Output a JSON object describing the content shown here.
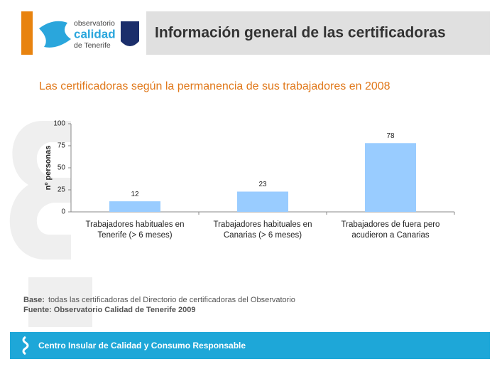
{
  "header": {
    "logo_lines": [
      "observatorio",
      "calidad",
      "de Tenerife"
    ],
    "title": "Información general de las certificadoras"
  },
  "chart_data": {
    "type": "bar",
    "title": "Las certificadoras según la permanencia de sus trabajadores en 2008",
    "y_label": "nº personas",
    "categories": [
      "Trabajadores habituales en Tenerife  (> 6 meses)",
      "Trabajadores habituales en Canarias (> 6 meses)",
      "Trabajadores de fuera pero acudieron a Canarias"
    ],
    "values": [
      12,
      23,
      78
    ],
    "color": "#99ccff",
    "ylim": [
      0,
      100
    ],
    "yticks": [
      0,
      25,
      50,
      75,
      100
    ]
  },
  "notes": {
    "base_label": "Base:",
    "base_text": "todas las certificadoras del Directorio de certificadoras del Observatorio",
    "source": "Fuente: Observatorio Calidad de Tenerife 2009"
  },
  "footer": "Centro Insular de Calidad y Consumo Responsable"
}
